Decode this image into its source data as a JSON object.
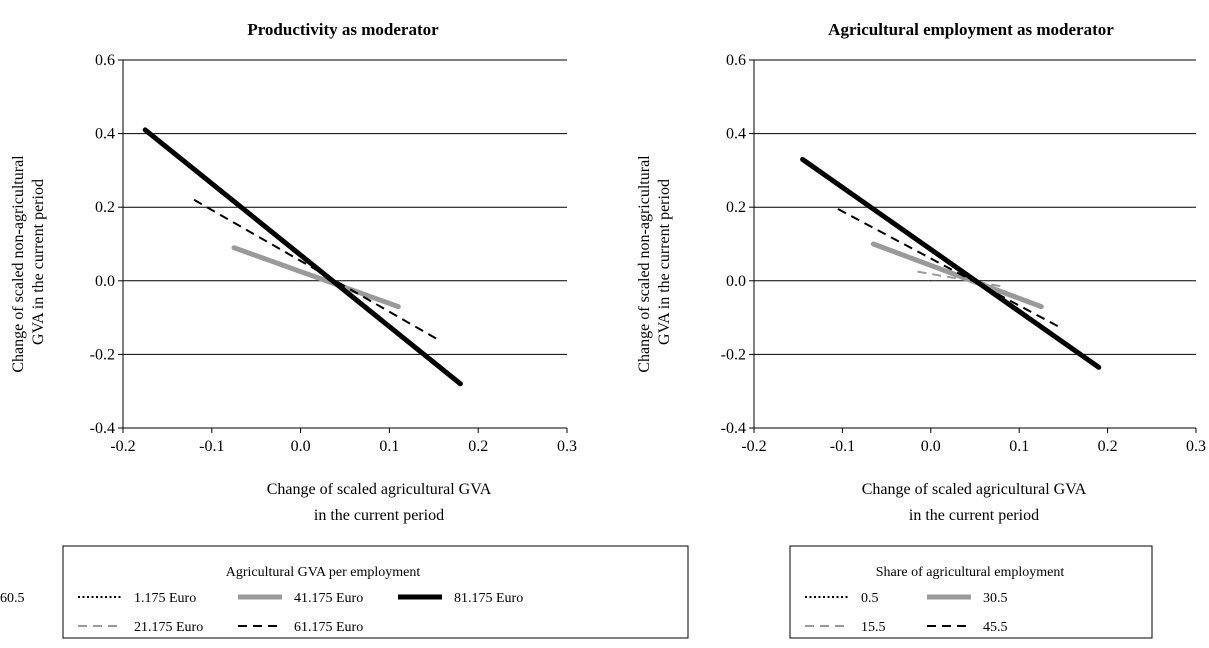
{
  "chart_data": [
    {
      "type": "line",
      "title": "Productivity as moderator",
      "xlabel": [
        "Change of scaled agricultural GVA",
        "in the current period"
      ],
      "ylabel": [
        "Change of scaled non-agricultural",
        "GVA in the current period"
      ],
      "xlim": [
        -0.2,
        0.3
      ],
      "ylim": [
        -0.4,
        0.6
      ],
      "xticks": [
        "-0.2",
        "-0.1",
        "0.0",
        "0.1",
        "0.2",
        "0.3"
      ],
      "yticks": [
        "-0.4",
        "-0.2",
        "0.0",
        "0.2",
        "0.4",
        "0.6"
      ],
      "grid": "horizontal",
      "legend": {
        "title": "Agricultural GVA per employment",
        "position": "bottom"
      },
      "series": [
        {
          "name": "1.175 Euro",
          "style": "dotted",
          "color": "#000000",
          "x": [
            0.0,
            0.0
          ],
          "y": [
            0.0,
            0.0
          ]
        },
        {
          "name": "21.175 Euro",
          "style": "dashed",
          "color": "#9a9a9a",
          "x": [
            0.0,
            0.0
          ],
          "y": [
            0.0,
            0.0
          ]
        },
        {
          "name": "41.175 Euro",
          "style": "solid-thick",
          "color": "#9a9a9a",
          "x": [
            -0.075,
            0.11
          ],
          "y": [
            0.09,
            -0.07
          ]
        },
        {
          "name": "61.175 Euro",
          "style": "dashed",
          "color": "#000000",
          "x": [
            -0.12,
            0.155
          ],
          "y": [
            0.22,
            -0.16
          ]
        },
        {
          "name": "81.175 Euro",
          "style": "solid-thick",
          "color": "#000000",
          "x": [
            -0.175,
            0.18
          ],
          "y": [
            0.41,
            -0.28
          ]
        }
      ]
    },
    {
      "type": "line",
      "title": "Agricultural employment as moderator",
      "xlabel": [
        "Change of scaled agricultural GVA",
        "in the current period"
      ],
      "ylabel": [
        "Change of scaled non-agricultural",
        "GVA in the current period"
      ],
      "xlim": [
        -0.2,
        0.3
      ],
      "ylim": [
        -0.4,
        0.6
      ],
      "xticks": [
        "-0.2",
        "-0.1",
        "0.0",
        "0.1",
        "0.2",
        "0.3"
      ],
      "yticks": [
        "-0.4",
        "-0.2",
        "0.0",
        "0.2",
        "0.4",
        "0.6"
      ],
      "grid": "horizontal",
      "legend": {
        "title": "Share of agricultural employment",
        "position": "bottom"
      },
      "series": [
        {
          "name": "0.5",
          "style": "dotted",
          "color": "#000000",
          "x": [
            0.0,
            0.0
          ],
          "y": [
            0.0,
            0.0
          ]
        },
        {
          "name": "15.5",
          "style": "dashed",
          "color": "#9a9a9a",
          "x": [
            -0.015,
            0.08
          ],
          "y": [
            0.025,
            -0.015
          ]
        },
        {
          "name": "30.5",
          "style": "solid-thick",
          "color": "#9a9a9a",
          "x": [
            -0.065,
            0.125
          ],
          "y": [
            0.1,
            -0.07
          ]
        },
        {
          "name": "45.5",
          "style": "dashed",
          "color": "#000000",
          "x": [
            -0.105,
            0.145
          ],
          "y": [
            0.195,
            -0.125
          ]
        },
        {
          "name": "60.5",
          "style": "solid-thick",
          "color": "#000000",
          "x": [
            -0.145,
            0.19
          ],
          "y": [
            0.33,
            -0.235
          ]
        }
      ]
    }
  ]
}
